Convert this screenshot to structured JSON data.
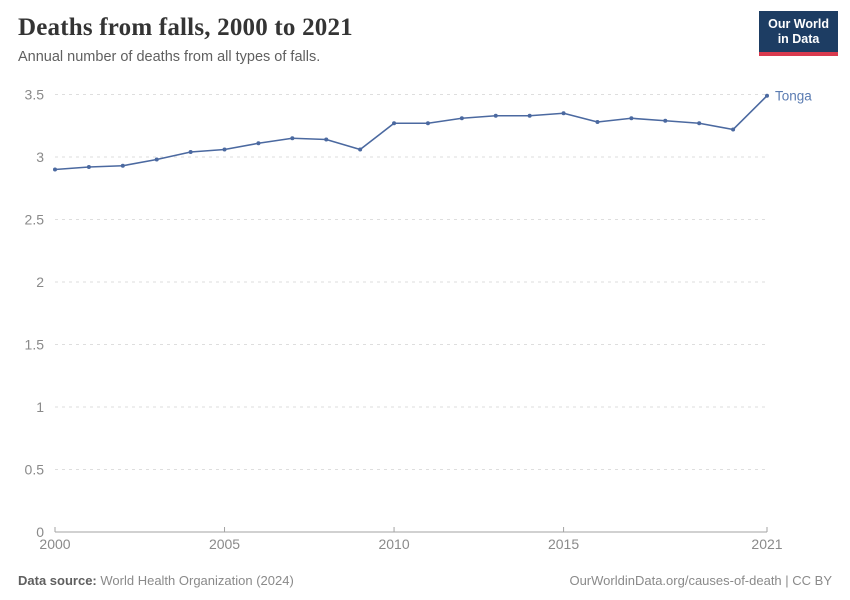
{
  "header": {
    "title": "Deaths from falls, 2000 to 2021",
    "subtitle": "Annual number of deaths from all types of falls."
  },
  "logo": {
    "line1": "Our World",
    "line2": "in Data"
  },
  "chart_data": {
    "type": "line",
    "title": "Deaths from falls, 2000 to 2021",
    "xlabel": "",
    "ylabel": "",
    "x": [
      2000,
      2001,
      2002,
      2003,
      2004,
      2005,
      2006,
      2007,
      2008,
      2009,
      2010,
      2011,
      2012,
      2013,
      2014,
      2015,
      2016,
      2017,
      2018,
      2019,
      2020,
      2021
    ],
    "series": [
      {
        "name": "Tonga",
        "values": [
          2.9,
          2.92,
          2.93,
          2.98,
          3.04,
          3.06,
          3.11,
          3.15,
          3.14,
          3.06,
          3.27,
          3.27,
          3.31,
          3.33,
          3.33,
          3.35,
          3.28,
          3.31,
          3.29,
          3.27,
          3.22,
          3.49
        ]
      }
    ],
    "xlim": [
      2000,
      2021
    ],
    "ylim": [
      0,
      3.5
    ],
    "yticks": [
      0,
      0.5,
      1,
      1.5,
      2,
      2.5,
      3,
      3.5
    ],
    "ytick_labels": [
      "0",
      "0.5",
      "1",
      "1.5",
      "2",
      "2.5",
      "3",
      "3.5"
    ],
    "xticks": [
      2000,
      2005,
      2010,
      2015,
      2021
    ],
    "xtick_labels": [
      "2000",
      "2005",
      "2010",
      "2015",
      "2021"
    ],
    "grid": "horizontal-dashed",
    "legend_position": "end-of-line-label",
    "markers": true
  },
  "colors": {
    "line": "#4b69a0",
    "entity_label": "#5b7cb2",
    "grid": "#dedede",
    "axis": "#a3a3a3",
    "tick_text": "#8a8a8a",
    "title_text": "#343434",
    "subtitle_text": "#606060",
    "logo_bg": "#1d3d63",
    "logo_accent": "#d93a4e"
  },
  "footer": {
    "source_label": "Data source:",
    "source_value": "World Health Organization (2024)",
    "attribution": "OurWorldinData.org/causes-of-death | CC BY"
  }
}
